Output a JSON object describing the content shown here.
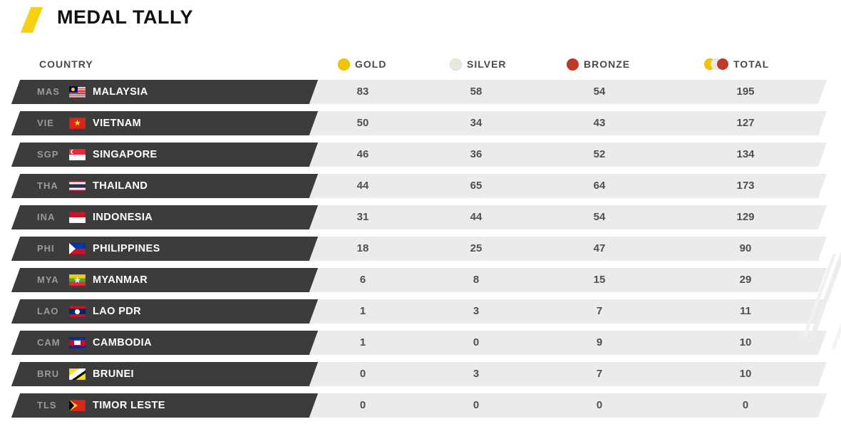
{
  "title": "MEDAL TALLY",
  "header": {
    "country": "COUNTRY",
    "gold": "GOLD",
    "silver": "SILVER",
    "bronze": "BRONZE",
    "total": "TOTAL"
  },
  "colors": {
    "gold": "#f2c500",
    "silver": "#eae6e0",
    "bronze": "#bf3a2b",
    "banner": "#3c3c3c",
    "row_background": "#ebebeb",
    "accent_yellow": "#f8d015"
  },
  "chart_data": {
    "type": "table",
    "title": "MEDAL TALLY",
    "columns": [
      "COUNTRY",
      "GOLD",
      "SILVER",
      "BRONZE",
      "TOTAL"
    ],
    "rows": [
      {
        "code": "MAS",
        "name": "MALAYSIA",
        "flag": "mas",
        "gold": 83,
        "silver": 58,
        "bronze": 54,
        "total": 195
      },
      {
        "code": "VIE",
        "name": "VIETNAM",
        "flag": "vie",
        "gold": 50,
        "silver": 34,
        "bronze": 43,
        "total": 127
      },
      {
        "code": "SGP",
        "name": "SINGAPORE",
        "flag": "sgp",
        "gold": 46,
        "silver": 36,
        "bronze": 52,
        "total": 134
      },
      {
        "code": "THA",
        "name": "THAILAND",
        "flag": "tha",
        "gold": 44,
        "silver": 65,
        "bronze": 64,
        "total": 173
      },
      {
        "code": "INA",
        "name": "INDONESIA",
        "flag": "ina",
        "gold": 31,
        "silver": 44,
        "bronze": 54,
        "total": 129
      },
      {
        "code": "PHI",
        "name": "PHILIPPINES",
        "flag": "phi",
        "gold": 18,
        "silver": 25,
        "bronze": 47,
        "total": 90
      },
      {
        "code": "MYA",
        "name": "MYANMAR",
        "flag": "mya",
        "gold": 6,
        "silver": 8,
        "bronze": 15,
        "total": 29
      },
      {
        "code": "LAO",
        "name": "LAO PDR",
        "flag": "lao",
        "gold": 1,
        "silver": 3,
        "bronze": 7,
        "total": 11
      },
      {
        "code": "CAM",
        "name": "CAMBODIA",
        "flag": "cam",
        "gold": 1,
        "silver": 0,
        "bronze": 9,
        "total": 10
      },
      {
        "code": "BRU",
        "name": "BRUNEI",
        "flag": "bru",
        "gold": 0,
        "silver": 3,
        "bronze": 7,
        "total": 10
      },
      {
        "code": "TLS",
        "name": "TIMOR LESTE",
        "flag": "tls",
        "gold": 0,
        "silver": 0,
        "bronze": 0,
        "total": 0
      }
    ]
  }
}
